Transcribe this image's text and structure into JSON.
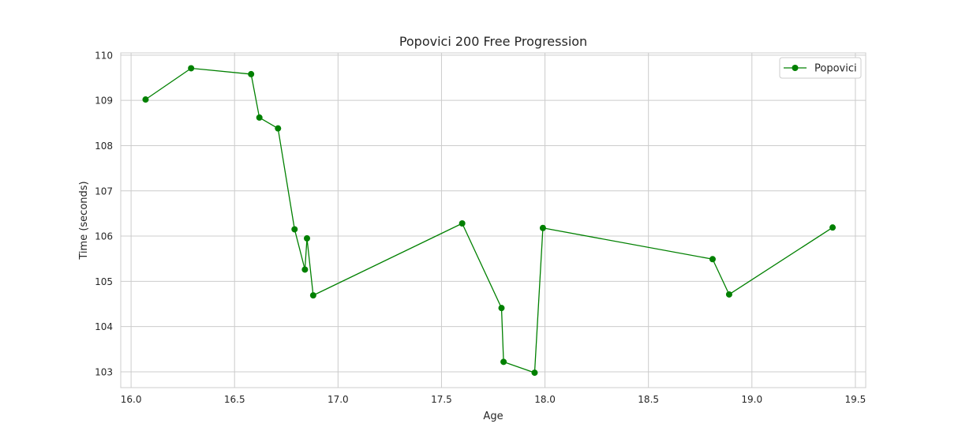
{
  "chart_data": {
    "type": "line",
    "title": "Popovici 200 Free Progression",
    "xlabel": "Age",
    "ylabel": "Time (seconds)",
    "xlim": [
      15.95,
      19.55
    ],
    "ylim": [
      102.65,
      110.05
    ],
    "xticks": [
      16.0,
      16.5,
      17.0,
      17.5,
      18.0,
      18.5,
      19.0,
      19.5
    ],
    "xtick_labels": [
      "16.0",
      "16.5",
      "17.0",
      "17.5",
      "18.0",
      "18.5",
      "19.0",
      "19.5"
    ],
    "yticks": [
      103,
      104,
      105,
      106,
      107,
      108,
      109,
      110
    ],
    "ytick_labels": [
      "103",
      "104",
      "105",
      "106",
      "107",
      "108",
      "109",
      "110"
    ],
    "grid": true,
    "legend_position": "top-right",
    "color": "#008000",
    "series": [
      {
        "name": "Popovici",
        "marker": "circle",
        "x": [
          16.07,
          16.29,
          16.58,
          16.62,
          16.71,
          16.79,
          16.84,
          16.85,
          16.88,
          17.6,
          17.79,
          17.8,
          17.95,
          17.99,
          18.81,
          18.89,
          19.39
        ],
        "y": [
          109.02,
          109.71,
          109.58,
          108.62,
          108.38,
          106.15,
          105.26,
          105.95,
          104.69,
          106.28,
          104.41,
          103.22,
          102.98,
          106.18,
          105.49,
          104.71,
          106.19
        ]
      }
    ]
  }
}
